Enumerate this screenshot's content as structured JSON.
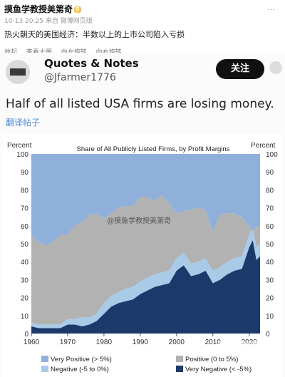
{
  "weibo": {
    "author": "摸鱼学教授美第奇",
    "vip_badge": "5",
    "more": "...",
    "date": "10-13 20:25",
    "source": "来自 微博网页版",
    "text": "热火朝天的美国经济：半数以上的上市公司陷入亏损",
    "actions": [
      "收起",
      "查看大图",
      "向左旋转",
      "向右旋转"
    ]
  },
  "tweet": {
    "name": "Quotes & Notes",
    "handle": "@Jfarmer1776",
    "follow": "关注",
    "text": "Half of all listed USA firms are losing money.",
    "translate": "翻译帖子"
  },
  "watermarks": [
    "@摸鱼学教授美第奇",
    "新浪微博授美第奇"
  ],
  "colors": {
    "very_negative": "#1b3a6b",
    "negative": "#a9cbe8",
    "positive": "#b2b2b2",
    "very_positive": "#8fb0db"
  },
  "chart_data": {
    "type": "area",
    "title": "Share of All Publicly Listed Firms, by Profit Margins",
    "ylabel_left": "Percent",
    "ylabel_right": "Percent",
    "ylim": [
      0,
      100
    ],
    "yticks": [
      0,
      10,
      20,
      30,
      40,
      50,
      60,
      70,
      80,
      90,
      100
    ],
    "xlim": [
      1960,
      2023
    ],
    "xticks": [
      1960,
      1970,
      1980,
      1990,
      2000,
      2010,
      2020
    ],
    "stacking": "stacked to 100%",
    "x": [
      1960,
      1962,
      1964,
      1966,
      1968,
      1970,
      1972,
      1974,
      1976,
      1978,
      1980,
      1982,
      1984,
      1986,
      1988,
      1990,
      1992,
      1994,
      1996,
      1998,
      2000,
      2002,
      2004,
      2006,
      2008,
      2010,
      2012,
      2014,
      2016,
      2018,
      2020,
      2021,
      2022,
      2023
    ],
    "series": [
      {
        "name": "Very Negative (< -5%)",
        "values": [
          4,
          3,
          3,
          3,
          3,
          5,
          5,
          4,
          5,
          7,
          11,
          15,
          17,
          18,
          19,
          22,
          24,
          26,
          27,
          28,
          35,
          38,
          32,
          33,
          35,
          28,
          30,
          33,
          35,
          36,
          48,
          52,
          41,
          43
        ]
      },
      {
        "name": "Negative (-5 to 0%)",
        "values": [
          2,
          2,
          2,
          2,
          2,
          3,
          3,
          5,
          4,
          4,
          6,
          6,
          6,
          7,
          7,
          7,
          7,
          7,
          7,
          7,
          7,
          7,
          7,
          7,
          7,
          7,
          7,
          7,
          7,
          7,
          7,
          7,
          7,
          7
        ]
      },
      {
        "name": "Positive (0 to 5%)",
        "values": [
          49,
          46,
          44,
          46,
          50,
          47,
          52,
          53,
          57,
          56,
          47,
          46,
          47,
          46,
          45,
          47,
          45,
          41,
          43,
          38,
          25,
          23,
          30,
          30,
          27,
          22,
          29,
          27,
          25,
          22,
          5,
          -2,
          12,
          9
        ]
      },
      {
        "name": "Very Positive (> 5%)",
        "values": [
          45,
          49,
          51,
          49,
          45,
          45,
          40,
          38,
          34,
          33,
          36,
          33,
          30,
          29,
          29,
          24,
          24,
          26,
          23,
          27,
          33,
          32,
          31,
          30,
          31,
          43,
          34,
          33,
          33,
          35,
          40,
          43,
          40,
          41
        ]
      }
    ],
    "legend": [
      {
        "label": "Very Positive (> 5%)",
        "series": 3
      },
      {
        "label": "Positive (0 to 5%)",
        "series": 2
      },
      {
        "label": "Negative (-5 to 0%)",
        "series": 1
      },
      {
        "label": "Very Negative (< -5%)",
        "series": 0
      }
    ]
  }
}
